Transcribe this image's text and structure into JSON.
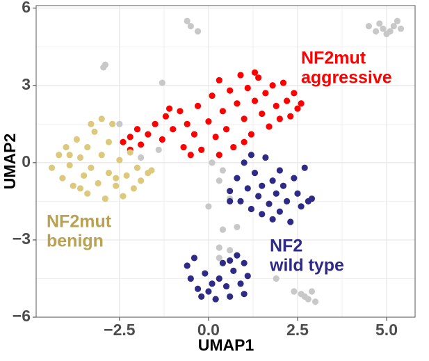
{
  "chart_data": {
    "type": "scatter",
    "x_label": "UMAP1",
    "y_label": "UMAP2",
    "xlim": [
      -4.84,
      5.8
    ],
    "ylim": [
      -6,
      6.1
    ],
    "xticks": [
      {
        "value": -2.5,
        "label": "−2.5"
      },
      {
        "value": 0,
        "label": "0.0"
      },
      {
        "value": 2.5,
        "label": "2.5"
      },
      {
        "value": 5,
        "label": "5.0"
      }
    ],
    "yticks": [
      {
        "value": -6,
        "label": "−6"
      },
      {
        "value": -3,
        "label": "−3"
      },
      0,
      3,
      6
    ],
    "grid": true,
    "annotations": [
      {
        "lines": [
          "NF2mut",
          "aggressive"
        ],
        "color": "#ff0000"
      },
      {
        "lines": [
          "NF2mut",
          "benign"
        ],
        "color": "#b8a253"
      },
      {
        "lines": [
          "NF2",
          "wild type"
        ],
        "color": "#2e2a86"
      }
    ],
    "series": [
      {
        "color": "#c8c8c8",
        "x": [
          -0.6,
          -0.5,
          -0.3,
          -2.9,
          -2.95,
          -1.3,
          -2.5,
          -1.4,
          -1.9,
          0.1,
          0.4,
          0.3,
          0.6,
          0.0,
          0.4,
          0.8,
          0.3,
          0.6,
          0.3,
          1.9,
          2.4,
          2.6,
          2.8,
          2.9,
          3.0,
          2.7,
          4.5,
          4.7,
          4.8,
          5.0,
          5.2,
          5.3,
          5.4,
          4.9,
          5.1
        ],
        "y": [
          5.5,
          5.3,
          5.1,
          3.8,
          3.7,
          3.1,
          1.5,
          0.5,
          0.2,
          0.0,
          -0.3,
          -0.7,
          -1.4,
          -1.7,
          -2.6,
          -2.5,
          -3.3,
          -3.4,
          -3.7,
          -4.5,
          -5.0,
          -5.1,
          -5.3,
          -5.0,
          -5.4,
          -5.2,
          5.3,
          5.1,
          5.4,
          5.0,
          5.3,
          5.5,
          5.2,
          5.2,
          5.1
        ]
      },
      {
        "color": "#ff0000",
        "x": [
          -2.4,
          -2.2,
          -2.0,
          -1.9,
          -1.7,
          -1.5,
          -1.3,
          -1.2,
          -1.0,
          -0.8,
          -0.7,
          -0.6,
          -0.4,
          -0.3,
          -0.2,
          0.0,
          0.1,
          0.2,
          0.3,
          0.4,
          0.5,
          0.6,
          0.7,
          0.8,
          0.9,
          1.0,
          1.1,
          1.2,
          1.3,
          1.4,
          1.5,
          1.6,
          1.7,
          1.8,
          1.9,
          2.0,
          2.1,
          2.2,
          2.3,
          2.4,
          2.5,
          -1.1,
          -0.5,
          0.3,
          1.0,
          2.6,
          -2.2,
          1.3
        ],
        "y": [
          0.8,
          1.0,
          1.3,
          0.7,
          1.1,
          1.5,
          0.9,
          1.8,
          1.3,
          2.0,
          0.6,
          1.5,
          1.1,
          2.2,
          0.5,
          1.6,
          2.6,
          1.0,
          3.2,
          2.0,
          1.3,
          2.8,
          0.6,
          2.3,
          3.4,
          1.7,
          2.9,
          1.1,
          2.4,
          3.3,
          1.9,
          2.7,
          1.4,
          3.0,
          2.2,
          1.7,
          3.1,
          2.4,
          1.8,
          2.7,
          2.1,
          2.1,
          0.3,
          0.3,
          0.8,
          2.3,
          0.5,
          3.5
        ]
      },
      {
        "color": "#dcc97d",
        "x": [
          -4.4,
          -4.2,
          -4.1,
          -4.0,
          -3.9,
          -3.8,
          -3.7,
          -3.6,
          -3.5,
          -3.4,
          -3.4,
          -3.3,
          -3.2,
          -3.1,
          -3.0,
          -3.0,
          -2.9,
          -2.8,
          -2.8,
          -2.7,
          -2.6,
          -2.5,
          -2.4,
          -2.3,
          -2.2,
          -2.1,
          -2.0,
          -1.9,
          -1.7,
          -1.6,
          -3.6,
          -3.9,
          -3.3,
          -2.6
        ],
        "y": [
          -0.2,
          0.3,
          -0.6,
          0.6,
          -0.1,
          -0.9,
          0.9,
          0.2,
          -0.5,
          -1.2,
          0.6,
          -0.2,
          1.2,
          -0.8,
          0.3,
          1.7,
          -1.4,
          -0.4,
          0.8,
          1.5,
          -0.9,
          0.1,
          -1.3,
          -0.5,
          0.4,
          -1.0,
          -0.2,
          -0.7,
          -0.4,
          -0.3,
          -1.0,
          0.3,
          1.5,
          -0.6
        ]
      },
      {
        "color": "#2e2a86",
        "x": [
          0.6,
          0.8,
          0.9,
          1.0,
          1.1,
          1.2,
          1.3,
          1.4,
          1.5,
          1.5,
          1.6,
          1.7,
          1.8,
          1.8,
          1.9,
          2.0,
          2.0,
          2.1,
          2.2,
          2.3,
          2.4,
          2.5,
          2.6,
          2.7,
          2.8,
          2.9,
          1.2,
          0.6,
          -0.6,
          -0.5,
          -0.4,
          -0.3,
          -0.2,
          -0.1,
          0.0,
          0.1,
          0.2,
          0.3,
          0.4,
          0.5,
          0.6,
          0.7,
          0.8,
          0.9,
          1.0,
          1.0,
          1.1,
          0.6
        ],
        "y": [
          -1.1,
          -0.6,
          -1.5,
          0.0,
          -1.0,
          -1.8,
          -0.4,
          -1.3,
          -2.0,
          -0.9,
          0.2,
          -1.6,
          -0.7,
          -2.2,
          -1.2,
          -0.3,
          -1.9,
          -0.9,
          -1.5,
          -2.3,
          -0.6,
          -1.2,
          -1.7,
          -0.2,
          -1.5,
          -1.4,
          0.3,
          -1.5,
          -4.0,
          -4.5,
          -3.7,
          -4.9,
          -5.2,
          -4.3,
          -5.0,
          -4.7,
          -5.3,
          -4.5,
          -3.9,
          -4.8,
          -5.2,
          -4.2,
          -3.6,
          -4.7,
          -5.1,
          -3.9,
          -4.4,
          -3.8
        ]
      }
    ]
  }
}
